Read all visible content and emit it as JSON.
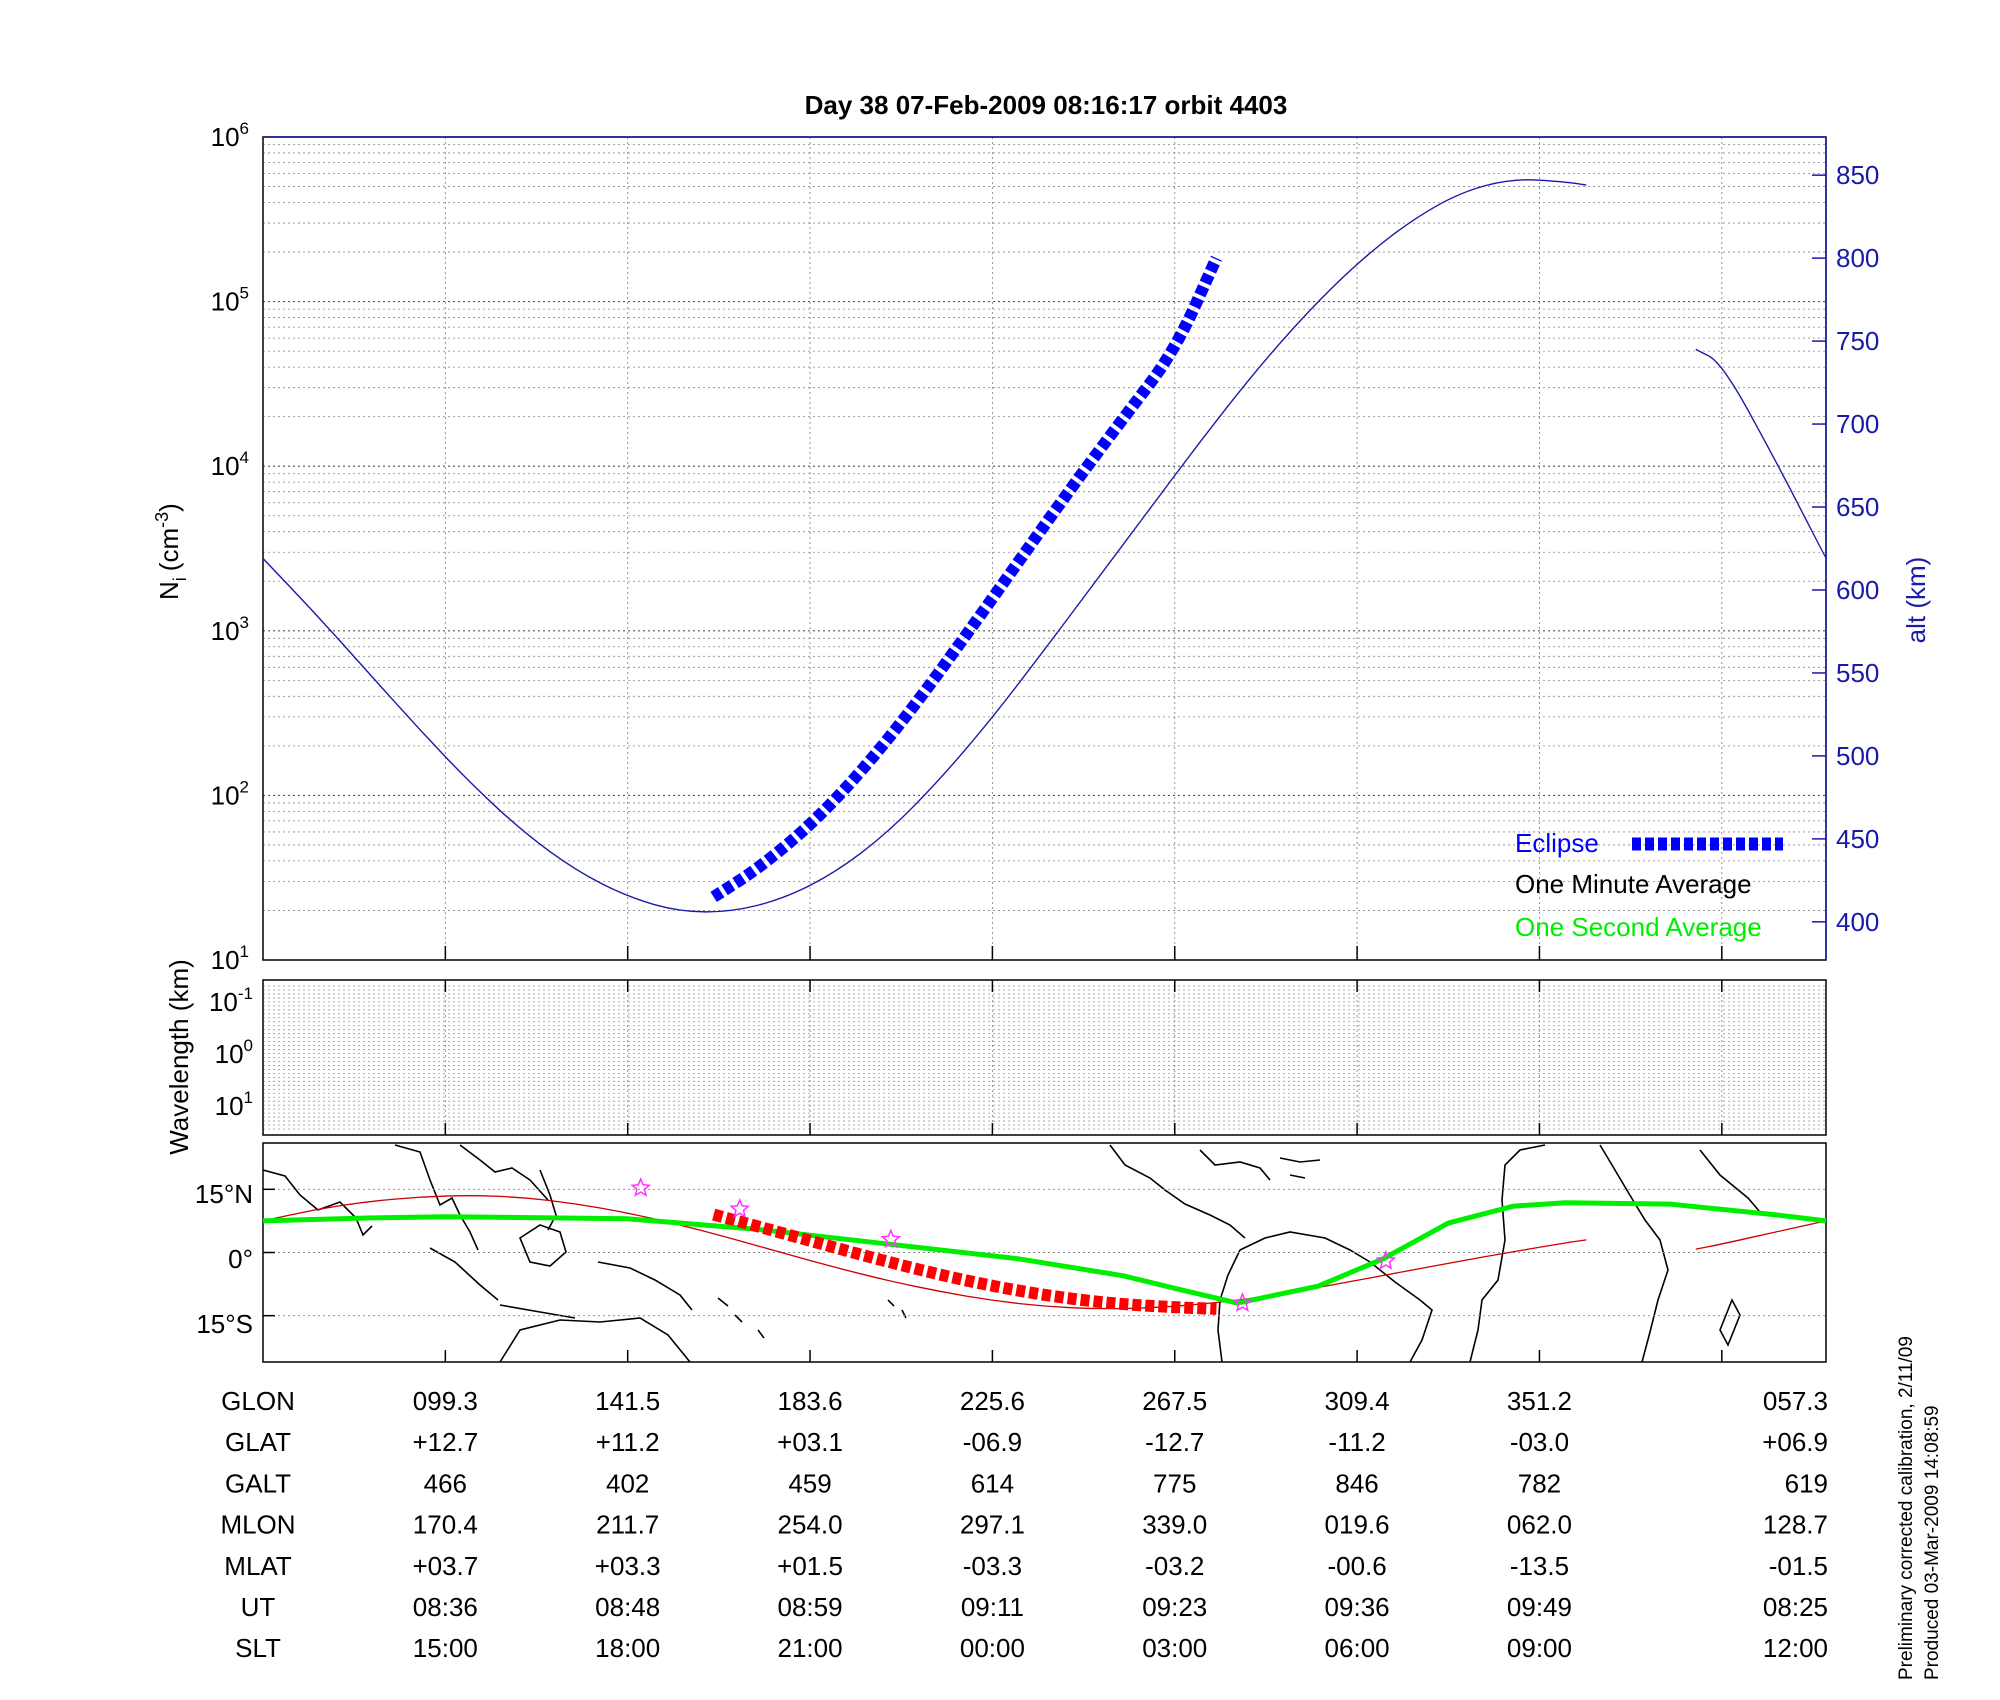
{
  "title": "Day 38  07-Feb-2009 08:16:17   orbit 4403",
  "footnote": {
    "line1": "Preliminary corrected calibration, 2/11/09",
    "line2": "Produced 03-Mar-2009 14:08:59"
  },
  "colors": {
    "alt_line": "#1a1aa8",
    "eclipse": "#0000ff",
    "one_second": "#00ee00",
    "one_minute": "#000000",
    "track": "#cc0000",
    "eclipse_track": "#ff0000",
    "star": "#ff33ff",
    "right_axis": "#1a1aa8"
  },
  "chart_data": [
    {
      "type": "line",
      "panel": "density",
      "ylabel": "N",
      "ylabel_sub": "i",
      "ylabel_unit": "(cm",
      "ylabel_sup": "-3",
      "ylabel_close": ")",
      "yscale": "log",
      "ylim": [
        10,
        1000000
      ],
      "yticks_exp": [
        "1",
        "2",
        "3",
        "4",
        "5",
        "6"
      ],
      "y2label": "alt (km)",
      "y2lim": [
        377,
        873
      ],
      "y2ticks": [
        "400",
        "450",
        "500",
        "550",
        "600",
        "650",
        "700",
        "750",
        "800",
        "850"
      ],
      "xlim": [
        0,
        600
      ],
      "xgrid": [
        70,
        140,
        210,
        280,
        350,
        420,
        490,
        560
      ],
      "legend": {
        "position": "bottom-right",
        "entries": [
          "Eclipse",
          "One Minute Average",
          "One Second Average"
        ]
      },
      "altitude_series": {
        "name": "alt (km)",
        "x": [
          0,
          20,
          40,
          60,
          80,
          100,
          120,
          140,
          160,
          180,
          200,
          220,
          240,
          260,
          280,
          300,
          320,
          340,
          360,
          380,
          400,
          420,
          440,
          460,
          480,
          500,
          508,
          550,
          560,
          580,
          600
        ],
        "y": [
          619,
          586,
          551,
          516,
          483,
          454,
          431,
          415,
          406,
          406,
          414,
          430,
          454,
          486,
          523,
          564,
          606,
          648,
          690,
          730,
          766,
          797,
          822,
          840,
          848,
          846,
          844,
          745,
          737,
          680,
          619
        ]
      },
      "eclipse_series": {
        "name": "Eclipse",
        "x": [
          173,
          190,
          210,
          230,
          250,
          270,
          290,
          310,
          330,
          350,
          366
        ],
        "y": [
          415,
          432,
          458,
          491,
          530,
          573,
          617,
          661,
          703,
          744,
          800
        ]
      },
      "gaps": [
        [
          508,
          550
        ]
      ]
    },
    {
      "type": "line",
      "panel": "wavelength",
      "ylabel": "Wavelength (km)",
      "yticks": [
        "10",
        "10",
        "10"
      ],
      "yticks_exp": [
        "-1",
        "0",
        "1"
      ]
    },
    {
      "type": "line",
      "panel": "map",
      "yticks": [
        "15°N",
        "0°",
        "15°S"
      ],
      "ylim": [
        -26,
        26
      ],
      "xlim": [
        0,
        600
      ],
      "track_series": {
        "name": "orbit track",
        "x": [
          0,
          20,
          40,
          60,
          80,
          100,
          120,
          140,
          160,
          180,
          200,
          220,
          240,
          260,
          280,
          300,
          320,
          340,
          360,
          380,
          400,
          420,
          440,
          460,
          480,
          500,
          508,
          550,
          560,
          580,
          600
        ],
        "y": [
          7.5,
          10.2,
          12.1,
          13.2,
          13.6,
          13.1,
          11.6,
          9.4,
          6.6,
          3.3,
          -0.2,
          -3.6,
          -6.7,
          -9.3,
          -11.4,
          -12.8,
          -13.4,
          -13.2,
          -12.3,
          -10.9,
          -8.9,
          -6.6,
          -4.3,
          -2.0,
          0.2,
          2.3,
          3.0,
          0.8,
          2.0,
          4.8,
          7.5
        ]
      },
      "eclipse_track_series": {
        "name": "Eclipse",
        "x": [
          173,
          190,
          210,
          230,
          250,
          270,
          290,
          310,
          330,
          350,
          366
        ],
        "y": [
          9.0,
          6.2,
          2.8,
          -0.6,
          -3.8,
          -6.7,
          -9.1,
          -11.0,
          -12.3,
          -13.0,
          -13.4
        ]
      },
      "one_second_series": {
        "name": "One Second Average",
        "x": [
          0,
          40,
          70,
          140,
          190,
          240,
          290,
          330,
          350,
          374,
          405,
          430,
          455,
          480,
          500,
          540,
          580,
          600
        ],
        "y": [
          7.5,
          8.2,
          8.5,
          8.0,
          5.5,
          2.0,
          -1.5,
          -5.5,
          -8.5,
          -12.0,
          -8.0,
          -1.5,
          7.0,
          11.0,
          11.8,
          11.5,
          9.0,
          7.5
        ]
      },
      "stars": {
        "x": [
          145,
          183,
          241,
          376,
          431
        ],
        "y": [
          15.3,
          10.3,
          3.1,
          -12.0,
          -2.0
        ]
      }
    }
  ],
  "table": {
    "row_labels": [
      "GLON",
      "GLAT",
      "GALT",
      "MLON",
      "MLAT",
      "UT",
      "SLT"
    ],
    "columns_x": [
      70,
      140,
      210,
      280,
      350,
      420,
      490,
      600
    ],
    "rows": [
      [
        "099.3",
        "141.5",
        "183.6",
        "225.6",
        "267.5",
        "309.4",
        "351.2",
        "057.3"
      ],
      [
        "+12.7",
        "+11.2",
        "+03.1",
        "-06.9",
        "-12.7",
        "-11.2",
        "-03.0",
        "+06.9"
      ],
      [
        "466",
        "402",
        "459",
        "614",
        "775",
        "846",
        "782",
        "619"
      ],
      [
        "170.4",
        "211.7",
        "254.0",
        "297.1",
        "339.0",
        "019.6",
        "062.0",
        "128.7"
      ],
      [
        "+03.7",
        "+03.3",
        "+01.5",
        "-03.3",
        "-03.2",
        "-00.6",
        "-13.5",
        "-01.5"
      ],
      [
        "08:36",
        "08:48",
        "08:59",
        "09:11",
        "09:23",
        "09:36",
        "09:49",
        "08:25"
      ],
      [
        "15:00",
        "18:00",
        "21:00",
        "00:00",
        "03:00",
        "06:00",
        "09:00",
        "12:00"
      ]
    ]
  }
}
